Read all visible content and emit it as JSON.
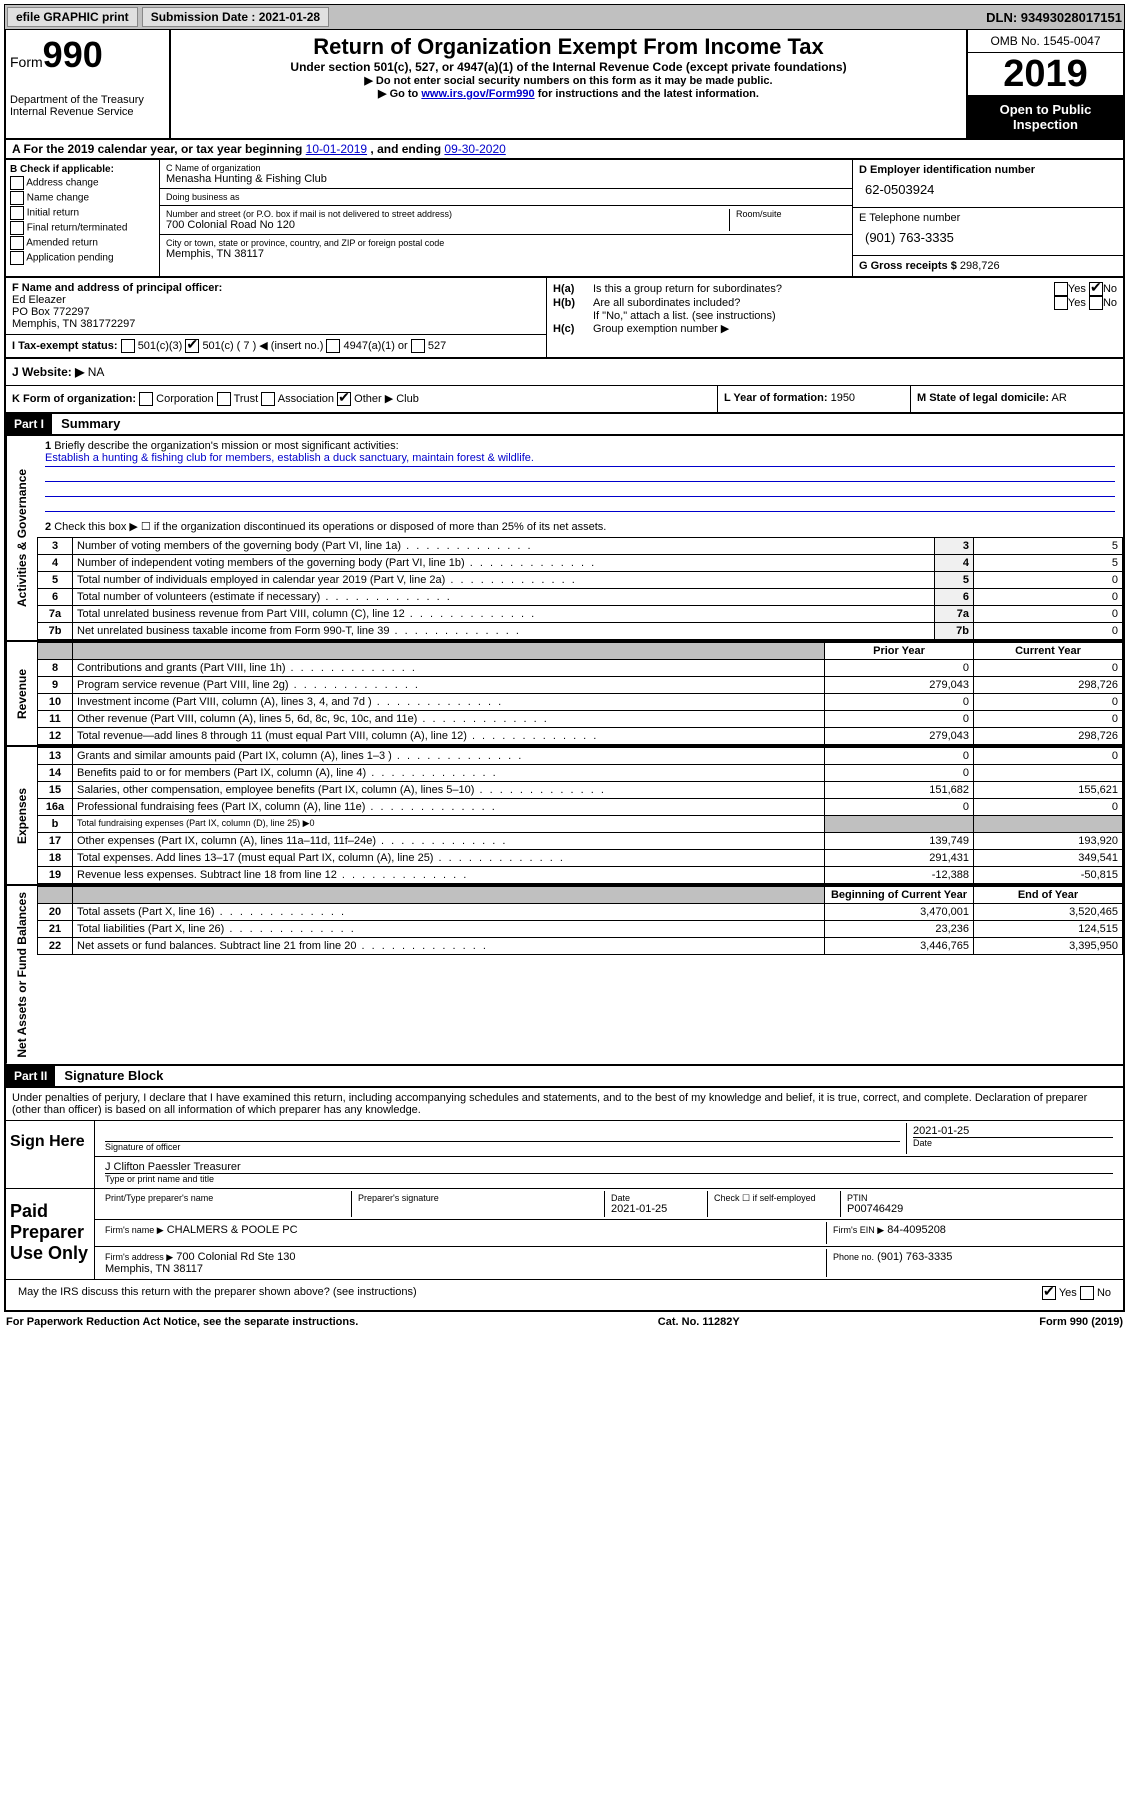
{
  "topbar": {
    "efile_label": "efile GRAPHIC print",
    "submission_label": "Submission Date : 2021-01-28",
    "dln_label": "DLN: 93493028017151"
  },
  "header": {
    "form_label": "Form",
    "form_number": "990",
    "dept": "Department of the Treasury\nInternal Revenue Service",
    "title": "Return of Organization Exempt From Income Tax",
    "subtitle": "Under section 501(c), 527, or 4947(a)(1) of the Internal Revenue Code (except private foundations)",
    "note1": "▶ Do not enter social security numbers on this form as it may be made public.",
    "note2_pre": "▶ Go to ",
    "note2_link": "www.irs.gov/Form990",
    "note2_post": " for instructions and the latest information.",
    "omb": "OMB No. 1545-0047",
    "year": "2019",
    "inspection": "Open to Public Inspection"
  },
  "row_a": {
    "prefix": "A For the 2019 calendar year, or tax year beginning ",
    "begin": "10-01-2019",
    "mid": " , and ending ",
    "end": "09-30-2020"
  },
  "section_b": {
    "header": "B Check if applicable:",
    "items": [
      "Address change",
      "Name change",
      "Initial return",
      "Final return/terminated",
      "Amended return",
      "Application pending"
    ]
  },
  "section_c": {
    "name_label": "C Name of organization",
    "name": "Menasha Hunting & Fishing Club",
    "dba_label": "Doing business as",
    "dba": "",
    "addr_label": "Number and street (or P.O. box if mail is not delivered to street address)",
    "room_label": "Room/suite",
    "addr": "700 Colonial Road No 120",
    "city_label": "City or town, state or province, country, and ZIP or foreign postal code",
    "city": "Memphis, TN  38117"
  },
  "section_d": {
    "ein_label": "D Employer identification number",
    "ein": "62-0503924",
    "phone_label": "E Telephone number",
    "phone": "(901) 763-3335",
    "gross_label": "G Gross receipts $",
    "gross": "298,726"
  },
  "section_f": {
    "label": "F  Name and address of principal officer:",
    "name": "Ed Eleazer",
    "addr1": "PO Box 772297",
    "addr2": "Memphis, TN  381772297",
    "i_label": "I  Tax-exempt status:",
    "i_opts": [
      "501(c)(3)",
      "501(c) ( 7 ) ◀ (insert no.)",
      "4947(a)(1) or",
      "527"
    ],
    "j_label": "J  Website: ▶",
    "j_val": "NA"
  },
  "section_h": {
    "ha_label": "H(a)",
    "ha_text": "Is this a group return for subordinates?",
    "ha_yes": "Yes",
    "ha_no": "No",
    "hb_label": "H(b)",
    "hb_text": "Are all subordinates included?",
    "hb_note": "If \"No,\" attach a list. (see instructions)",
    "hc_label": "H(c)",
    "hc_text": "Group exemption number ▶"
  },
  "row_k": {
    "k_label": "K Form of organization:",
    "k_opts": [
      "Corporation",
      "Trust",
      "Association",
      "Other ▶"
    ],
    "k_other": "Club",
    "l_label": "L Year of formation:",
    "l_val": "1950",
    "m_label": "M State of legal domicile:",
    "m_val": "AR"
  },
  "part1": {
    "header": "Part I",
    "title": "Summary",
    "line1_label": "1",
    "line1_text": "Briefly describe the organization's mission or most significant activities:",
    "line1_val": "Establish a hunting & fishing club for members, establish a duck sanctuary, maintain forest & wildlife.",
    "line2": "Check this box ▶ ☐ if the organization discontinued its operations or disposed of more than 25% of its net assets.",
    "governance_rows": [
      {
        "n": "3",
        "desc": "Number of voting members of the governing body (Part VI, line 1a)",
        "box": "3",
        "val": "5"
      },
      {
        "n": "4",
        "desc": "Number of independent voting members of the governing body (Part VI, line 1b)",
        "box": "4",
        "val": "5"
      },
      {
        "n": "5",
        "desc": "Total number of individuals employed in calendar year 2019 (Part V, line 2a)",
        "box": "5",
        "val": "0"
      },
      {
        "n": "6",
        "desc": "Total number of volunteers (estimate if necessary)",
        "box": "6",
        "val": "0"
      },
      {
        "n": "7a",
        "desc": "Total unrelated business revenue from Part VIII, column (C), line 12",
        "box": "7a",
        "val": "0"
      },
      {
        "n": "7b",
        "desc": "Net unrelated business taxable income from Form 990-T, line 39",
        "box": "7b",
        "val": "0"
      }
    ],
    "col_prior": "Prior Year",
    "col_current": "Current Year",
    "revenue_rows": [
      {
        "n": "8",
        "desc": "Contributions and grants (Part VIII, line 1h)",
        "p": "0",
        "c": "0"
      },
      {
        "n": "9",
        "desc": "Program service revenue (Part VIII, line 2g)",
        "p": "279,043",
        "c": "298,726"
      },
      {
        "n": "10",
        "desc": "Investment income (Part VIII, column (A), lines 3, 4, and 7d )",
        "p": "0",
        "c": "0"
      },
      {
        "n": "11",
        "desc": "Other revenue (Part VIII, column (A), lines 5, 6d, 8c, 9c, 10c, and 11e)",
        "p": "0",
        "c": "0"
      },
      {
        "n": "12",
        "desc": "Total revenue—add lines 8 through 11 (must equal Part VIII, column (A), line 12)",
        "p": "279,043",
        "c": "298,726"
      }
    ],
    "expense_rows": [
      {
        "n": "13",
        "desc": "Grants and similar amounts paid (Part IX, column (A), lines 1–3 )",
        "p": "0",
        "c": "0"
      },
      {
        "n": "14",
        "desc": "Benefits paid to or for members (Part IX, column (A), line 4)",
        "p": "0",
        "c": ""
      },
      {
        "n": "15",
        "desc": "Salaries, other compensation, employee benefits (Part IX, column (A), lines 5–10)",
        "p": "151,682",
        "c": "155,621"
      },
      {
        "n": "16a",
        "desc": "Professional fundraising fees (Part IX, column (A), line 11e)",
        "p": "0",
        "c": "0"
      },
      {
        "n": "b",
        "desc": "Total fundraising expenses (Part IX, column (D), line 25) ▶0",
        "p": "",
        "c": "",
        "shaded": true
      },
      {
        "n": "17",
        "desc": "Other expenses (Part IX, column (A), lines 11a–11d, 11f–24e)",
        "p": "139,749",
        "c": "193,920"
      },
      {
        "n": "18",
        "desc": "Total expenses. Add lines 13–17 (must equal Part IX, column (A), line 25)",
        "p": "291,431",
        "c": "349,541"
      },
      {
        "n": "19",
        "desc": "Revenue less expenses. Subtract line 18 from line 12",
        "p": "-12,388",
        "c": "-50,815"
      }
    ],
    "col_begin": "Beginning of Current Year",
    "col_end": "End of Year",
    "net_rows": [
      {
        "n": "20",
        "desc": "Total assets (Part X, line 16)",
        "p": "3,470,001",
        "c": "3,520,465"
      },
      {
        "n": "21",
        "desc": "Total liabilities (Part X, line 26)",
        "p": "23,236",
        "c": "124,515"
      },
      {
        "n": "22",
        "desc": "Net assets or fund balances. Subtract line 21 from line 20",
        "p": "3,446,765",
        "c": "3,395,950"
      }
    ],
    "vert_gov": "Activities & Governance",
    "vert_rev": "Revenue",
    "vert_exp": "Expenses",
    "vert_net": "Net Assets or Fund Balances"
  },
  "part2": {
    "header": "Part II",
    "title": "Signature Block",
    "declaration": "Under penalties of perjury, I declare that I have examined this return, including accompanying schedules and statements, and to the best of my knowledge and belief, it is true, correct, and complete. Declaration of preparer (other than officer) is based on all information of which preparer has any knowledge.",
    "sign_here": "Sign Here",
    "sig_officer": "Signature of officer",
    "sig_date": "Date",
    "sig_date_val": "2021-01-25",
    "sig_name": "J Clifton Paessler  Treasurer",
    "sig_name_label": "Type or print name and title",
    "paid_label": "Paid Preparer Use Only",
    "prep_name_label": "Print/Type preparer's name",
    "prep_sig_label": "Preparer's signature",
    "prep_date_label": "Date",
    "prep_date_val": "2021-01-25",
    "prep_check_label": "Check ☐ if self-employed",
    "ptin_label": "PTIN",
    "ptin_val": "P00746429",
    "firm_name_label": "Firm's name    ▶",
    "firm_name": "CHALMERS & POOLE PC",
    "firm_ein_label": "Firm's EIN ▶",
    "firm_ein": "84-4095208",
    "firm_addr_label": "Firm's address ▶",
    "firm_addr": "700 Colonial Rd Ste 130\nMemphis, TN  38117",
    "firm_phone_label": "Phone no.",
    "firm_phone": "(901) 763-3335",
    "discuss": "May the IRS discuss this return with the preparer shown above? (see instructions)",
    "discuss_yes": "Yes",
    "discuss_no": "No"
  },
  "footer": {
    "left": "For Paperwork Reduction Act Notice, see the separate instructions.",
    "center": "Cat. No. 11282Y",
    "right": "Form 990 (2019)"
  }
}
